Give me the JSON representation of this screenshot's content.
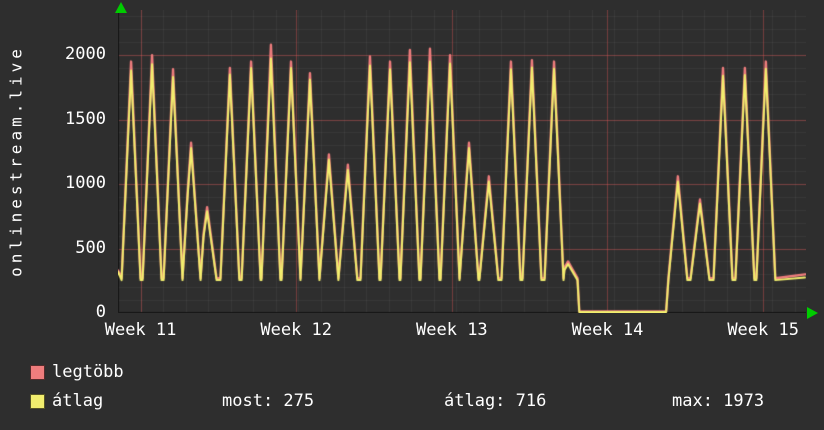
{
  "y_axis_label": "onlinestream.live",
  "legend": {
    "rows": [
      {
        "swatch_color": "#ef7d7d",
        "label": "legtöbb"
      },
      {
        "swatch_color": "#f2ee6e",
        "label": "átlag"
      }
    ],
    "stats": [
      {
        "text": "most: 275"
      },
      {
        "text": "átlag: 716"
      },
      {
        "text": "max: 1973"
      }
    ]
  },
  "chart_data": {
    "type": "line",
    "title": "",
    "ylabel": "onlinestream.live",
    "xlabel": "",
    "x_unit": "days",
    "x_range_days": [
      0,
      30.5
    ],
    "ylim": [
      0,
      2350
    ],
    "y_ticks": [
      0,
      500,
      1000,
      1500,
      2000
    ],
    "x_ticks": [
      {
        "label": "Week 11",
        "day": 1.0
      },
      {
        "label": "Week 12",
        "day": 7.9
      },
      {
        "label": "Week 13",
        "day": 14.8
      },
      {
        "label": "Week 14",
        "day": 21.7
      },
      {
        "label": "Week 15",
        "day": 28.6
      }
    ],
    "grid": {
      "minor_x_step_days": 1,
      "minor_y_step": 100,
      "major": "at ticks"
    },
    "legend_position": "bottom",
    "colors": {
      "background": "#2e2e2e",
      "text": "#ffffff",
      "grid_minor": "rgba(255,255,255,0.05)",
      "grid_major": "rgba(235,85,85,0.38)",
      "axis_line": "#151515",
      "axis_arrow": "#00cc00"
    },
    "stats": {
      "most": 275,
      "átlag": 716,
      "max": 1973
    },
    "series": [
      {
        "name": "legtöbb",
        "color": "#ef7d7d",
        "line_width": 2.4,
        "base": 270,
        "start": [
          0,
          330
        ],
        "end": [
          30.45,
          300
        ],
        "segments": [
          {
            "type": "peaks",
            "items": [
              [
                0.58,
                1950
              ],
              [
                1.51,
                2000
              ],
              [
                2.44,
                1890
              ],
              [
                3.24,
                1320
              ],
              [
                3.95,
                820
              ],
              [
                4.96,
                1900
              ],
              [
                5.9,
                1950
              ],
              [
                6.78,
                2080
              ],
              [
                7.67,
                1950
              ],
              [
                8.51,
                1860
              ],
              [
                9.35,
                1230
              ],
              [
                10.19,
                1150
              ],
              [
                11.17,
                1990
              ],
              [
                12.06,
                1950
              ],
              [
                12.94,
                2040
              ],
              [
                13.83,
                2050
              ],
              [
                14.72,
                2000
              ],
              [
                15.56,
                1320
              ],
              [
                16.44,
                1060
              ],
              [
                17.42,
                1950
              ],
              [
                18.35,
                1960
              ],
              [
                19.33,
                1950
              ],
              [
                19.95,
                400
              ]
            ]
          },
          {
            "type": "flat",
            "from": 20.45,
            "to": 24.3,
            "value": 12
          },
          {
            "type": "peaks",
            "items": [
              [
                24.82,
                1060
              ],
              [
                25.8,
                880
              ],
              [
                26.82,
                1900
              ],
              [
                27.79,
                1900
              ],
              [
                28.72,
                1950
              ]
            ]
          }
        ]
      },
      {
        "name": "átlag",
        "color": "#f2ee6e",
        "line_width": 2,
        "base": 255,
        "start": [
          0,
          320
        ],
        "end": [
          30.45,
          275
        ],
        "segments": [
          {
            "type": "peaks",
            "items": [
              [
                0.58,
                1880
              ],
              [
                1.51,
                1930
              ],
              [
                2.44,
                1830
              ],
              [
                3.24,
                1280
              ],
              [
                3.95,
                790
              ],
              [
                4.96,
                1850
              ],
              [
                5.9,
                1900
              ],
              [
                6.78,
                1973
              ],
              [
                7.67,
                1900
              ],
              [
                8.51,
                1810
              ],
              [
                9.35,
                1190
              ],
              [
                10.19,
                1110
              ],
              [
                11.17,
                1920
              ],
              [
                12.06,
                1890
              ],
              [
                12.94,
                1945
              ],
              [
                13.83,
                1950
              ],
              [
                14.72,
                1935
              ],
              [
                15.56,
                1280
              ],
              [
                16.44,
                1020
              ],
              [
                17.42,
                1890
              ],
              [
                18.35,
                1905
              ],
              [
                19.33,
                1895
              ],
              [
                19.95,
                380
              ]
            ]
          },
          {
            "type": "flat",
            "from": 20.45,
            "to": 24.3,
            "value": 8
          },
          {
            "type": "peaks",
            "items": [
              [
                24.82,
                1020
              ],
              [
                25.8,
                850
              ],
              [
                26.82,
                1840
              ],
              [
                27.79,
                1845
              ],
              [
                28.72,
                1895
              ]
            ]
          }
        ]
      }
    ]
  }
}
